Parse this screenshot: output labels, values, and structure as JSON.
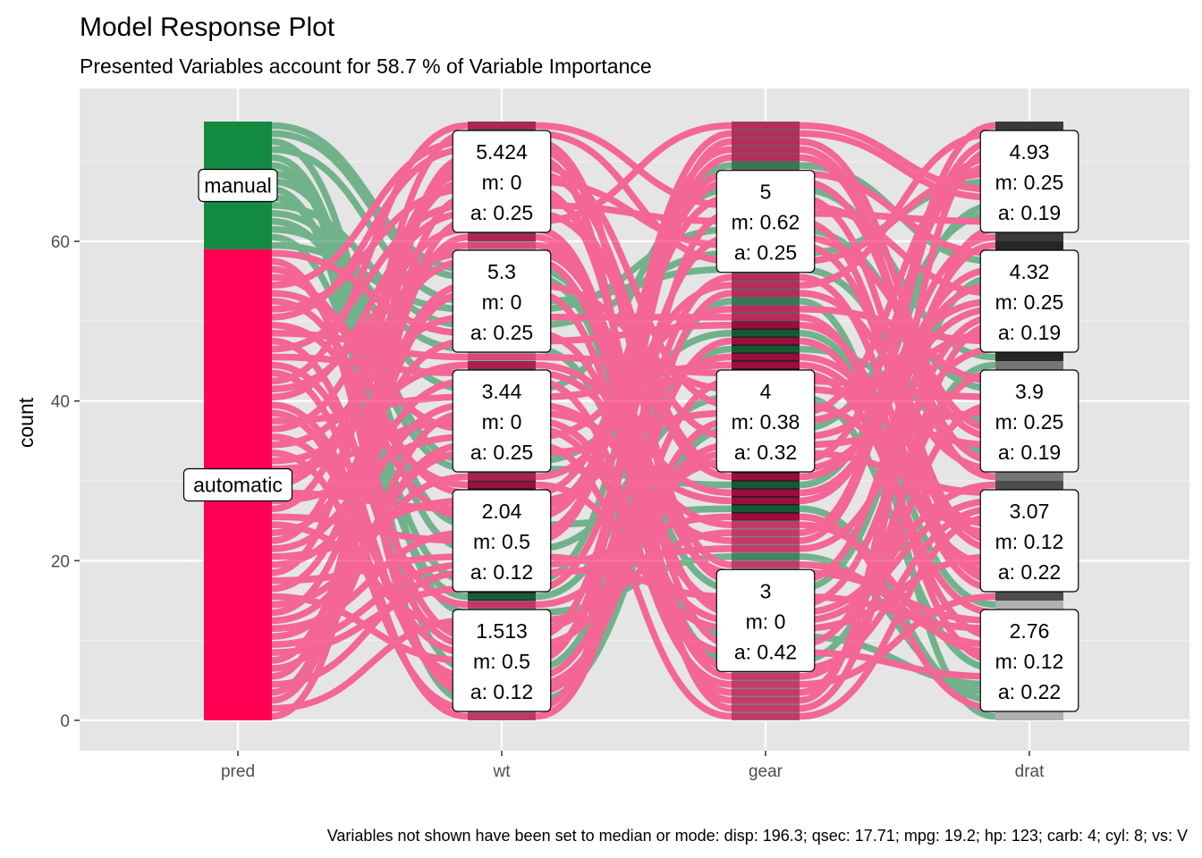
{
  "chart_data": {
    "type": "alluvial",
    "title": "Model Response Plot",
    "subtitle": "Presented Variables account for 58.7 % of Variable Importance",
    "ylabel": "count",
    "ylim": [
      0,
      75
    ],
    "yticks": [
      0,
      20,
      40,
      60
    ],
    "axes": [
      "pred",
      "wt",
      "gear",
      "drat"
    ],
    "caption": "Variables not shown have been set to median or mode: disp: 196.3; qsec: 17.71; mpg: 19.2; hp: 123; carb: 4; cyl: 8; vs: V",
    "colors": {
      "manual": "#138a42",
      "automatic": "#ff0055",
      "panel": "#e5e5e5",
      "grid": "#ffffff"
    },
    "pred_strata": [
      {
        "label": "manual",
        "count": 16,
        "color": "#138a42"
      },
      {
        "label": "automatic",
        "count": 59,
        "color": "#ff0055"
      }
    ],
    "strata": {
      "wt": [
        {
          "value": "5.424",
          "m": "m: 0",
          "a": "a: 0.25",
          "count": 15,
          "color": "#525252"
        },
        {
          "value": "5.3",
          "m": "m: 0",
          "a": "a: 0.25",
          "count": 15,
          "color": "#a6a6a6"
        },
        {
          "value": "3.44",
          "m": "m: 0",
          "a": "a: 0.25",
          "count": 15,
          "color": "#4a4a4a"
        },
        {
          "value": "2.04",
          "m": "m: 0.5",
          "a": "a: 0.12",
          "count": 15,
          "color": "#222222"
        },
        {
          "value": "1.513",
          "m": "m: 0.5",
          "a": "a: 0.12",
          "count": 15,
          "color": "#7a7a7a"
        }
      ],
      "gear": [
        {
          "value": "5",
          "m": "m: 0.62",
          "a": "a: 0.25",
          "count": 25,
          "color": "#636363"
        },
        {
          "value": "4",
          "m": "m: 0.38",
          "a": "a: 0.32",
          "count": 25,
          "color": "#1f1f1f"
        },
        {
          "value": "3",
          "m": "m: 0",
          "a": "a: 0.42",
          "count": 25,
          "color": "#808080"
        }
      ],
      "drat": [
        {
          "value": "4.93",
          "m": "m: 0.25",
          "a": "a: 0.19",
          "count": 15,
          "color": "#3a3a3a"
        },
        {
          "value": "4.32",
          "m": "m: 0.25",
          "a": "a: 0.19",
          "count": 15,
          "color": "#262626"
        },
        {
          "value": "3.9",
          "m": "m: 0.25",
          "a": "a: 0.19",
          "count": 15,
          "color": "#757575"
        },
        {
          "value": "3.07",
          "m": "m: 0.12",
          "a": "a: 0.22",
          "count": 15,
          "color": "#4d4d4d"
        },
        {
          "value": "2.76",
          "m": "m: 0.12",
          "a": "a: 0.22",
          "count": 15,
          "color": "#b0b0b0"
        }
      ]
    }
  }
}
